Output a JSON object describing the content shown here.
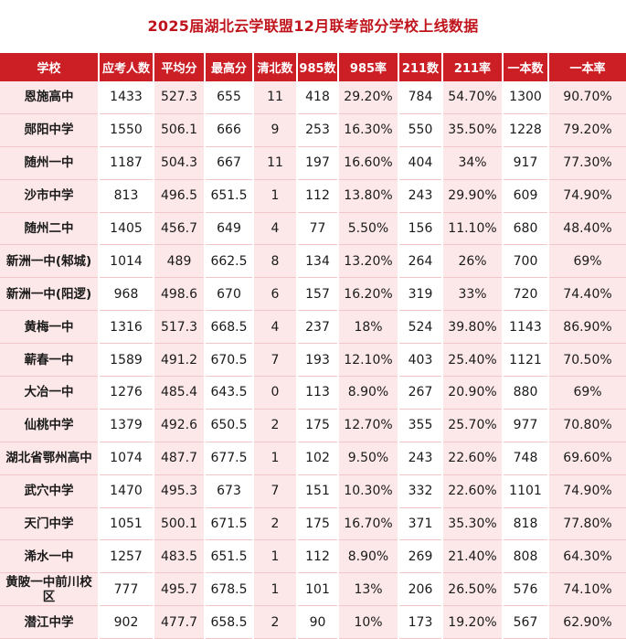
{
  "title": "2025届湖北云学联盟12月联考部分学校上线数据",
  "columns": [
    "学校",
    "应考人数",
    "平均分",
    "最高分",
    "清北数",
    "985数",
    "985率",
    "211数",
    "211率",
    "一本数",
    "一本率"
  ],
  "rows": [
    [
      "恩施高中",
      "1433",
      "527.3",
      "655",
      "11",
      "418",
      "29.20%",
      "784",
      "54.70%",
      "1300",
      "90.70%"
    ],
    [
      "郧阳中学",
      "1550",
      "506.1",
      "666",
      "9",
      "253",
      "16.30%",
      "550",
      "35.50%",
      "1228",
      "79.20%"
    ],
    [
      "随州一中",
      "1187",
      "504.3",
      "667",
      "11",
      "197",
      "16.60%",
      "404",
      "34%",
      "917",
      "77.30%"
    ],
    [
      "沙市中学",
      "813",
      "496.5",
      "651.5",
      "1",
      "112",
      "13.80%",
      "243",
      "29.90%",
      "609",
      "74.90%"
    ],
    [
      "随州二中",
      "1405",
      "456.7",
      "649",
      "4",
      "77",
      "5.50%",
      "156",
      "11.10%",
      "680",
      "48.40%"
    ],
    [
      "新洲一中(邾城)",
      "1014",
      "489",
      "662.5",
      "8",
      "134",
      "13.20%",
      "264",
      "26%",
      "700",
      "69%"
    ],
    [
      "新洲一中(阳逻)",
      "968",
      "498.6",
      "670",
      "6",
      "157",
      "16.20%",
      "319",
      "33%",
      "720",
      "74.40%"
    ],
    [
      "黄梅一中",
      "1316",
      "517.3",
      "668.5",
      "4",
      "237",
      "18%",
      "524",
      "39.80%",
      "1143",
      "86.90%"
    ],
    [
      "蕲春一中",
      "1589",
      "491.2",
      "670.5",
      "7",
      "193",
      "12.10%",
      "403",
      "25.40%",
      "1121",
      "70.50%"
    ],
    [
      "大冶一中",
      "1276",
      "485.4",
      "643.5",
      "0",
      "113",
      "8.90%",
      "267",
      "20.90%",
      "880",
      "69%"
    ],
    [
      "仙桃中学",
      "1379",
      "492.6",
      "650.5",
      "2",
      "175",
      "12.70%",
      "355",
      "25.70%",
      "977",
      "70.80%"
    ],
    [
      "湖北省鄂州高中",
      "1074",
      "487.7",
      "677.5",
      "1",
      "102",
      "9.50%",
      "243",
      "22.60%",
      "748",
      "69.60%"
    ],
    [
      "武穴中学",
      "1470",
      "495.3",
      "673",
      "7",
      "151",
      "10.30%",
      "332",
      "22.60%",
      "1101",
      "74.90%"
    ],
    [
      "天门中学",
      "1051",
      "500.1",
      "671.5",
      "2",
      "175",
      "16.70%",
      "371",
      "35.30%",
      "818",
      "77.80%"
    ],
    [
      "浠水一中",
      "1257",
      "483.5",
      "651.5",
      "1",
      "112",
      "8.90%",
      "269",
      "21.40%",
      "808",
      "64.30%"
    ],
    [
      "黄陂一中前川校区",
      "777",
      "495.7",
      "678.5",
      "1",
      "101",
      "13%",
      "206",
      "26.50%",
      "576",
      "74.10%"
    ],
    [
      "潜江中学",
      "902",
      "477.7",
      "658.5",
      "2",
      "90",
      "10%",
      "173",
      "19.20%",
      "567",
      "62.90%"
    ]
  ],
  "colors": {
    "header_bg": "#cc1e25",
    "title": "#c0141c",
    "pink_cell": "#fde8e9"
  }
}
